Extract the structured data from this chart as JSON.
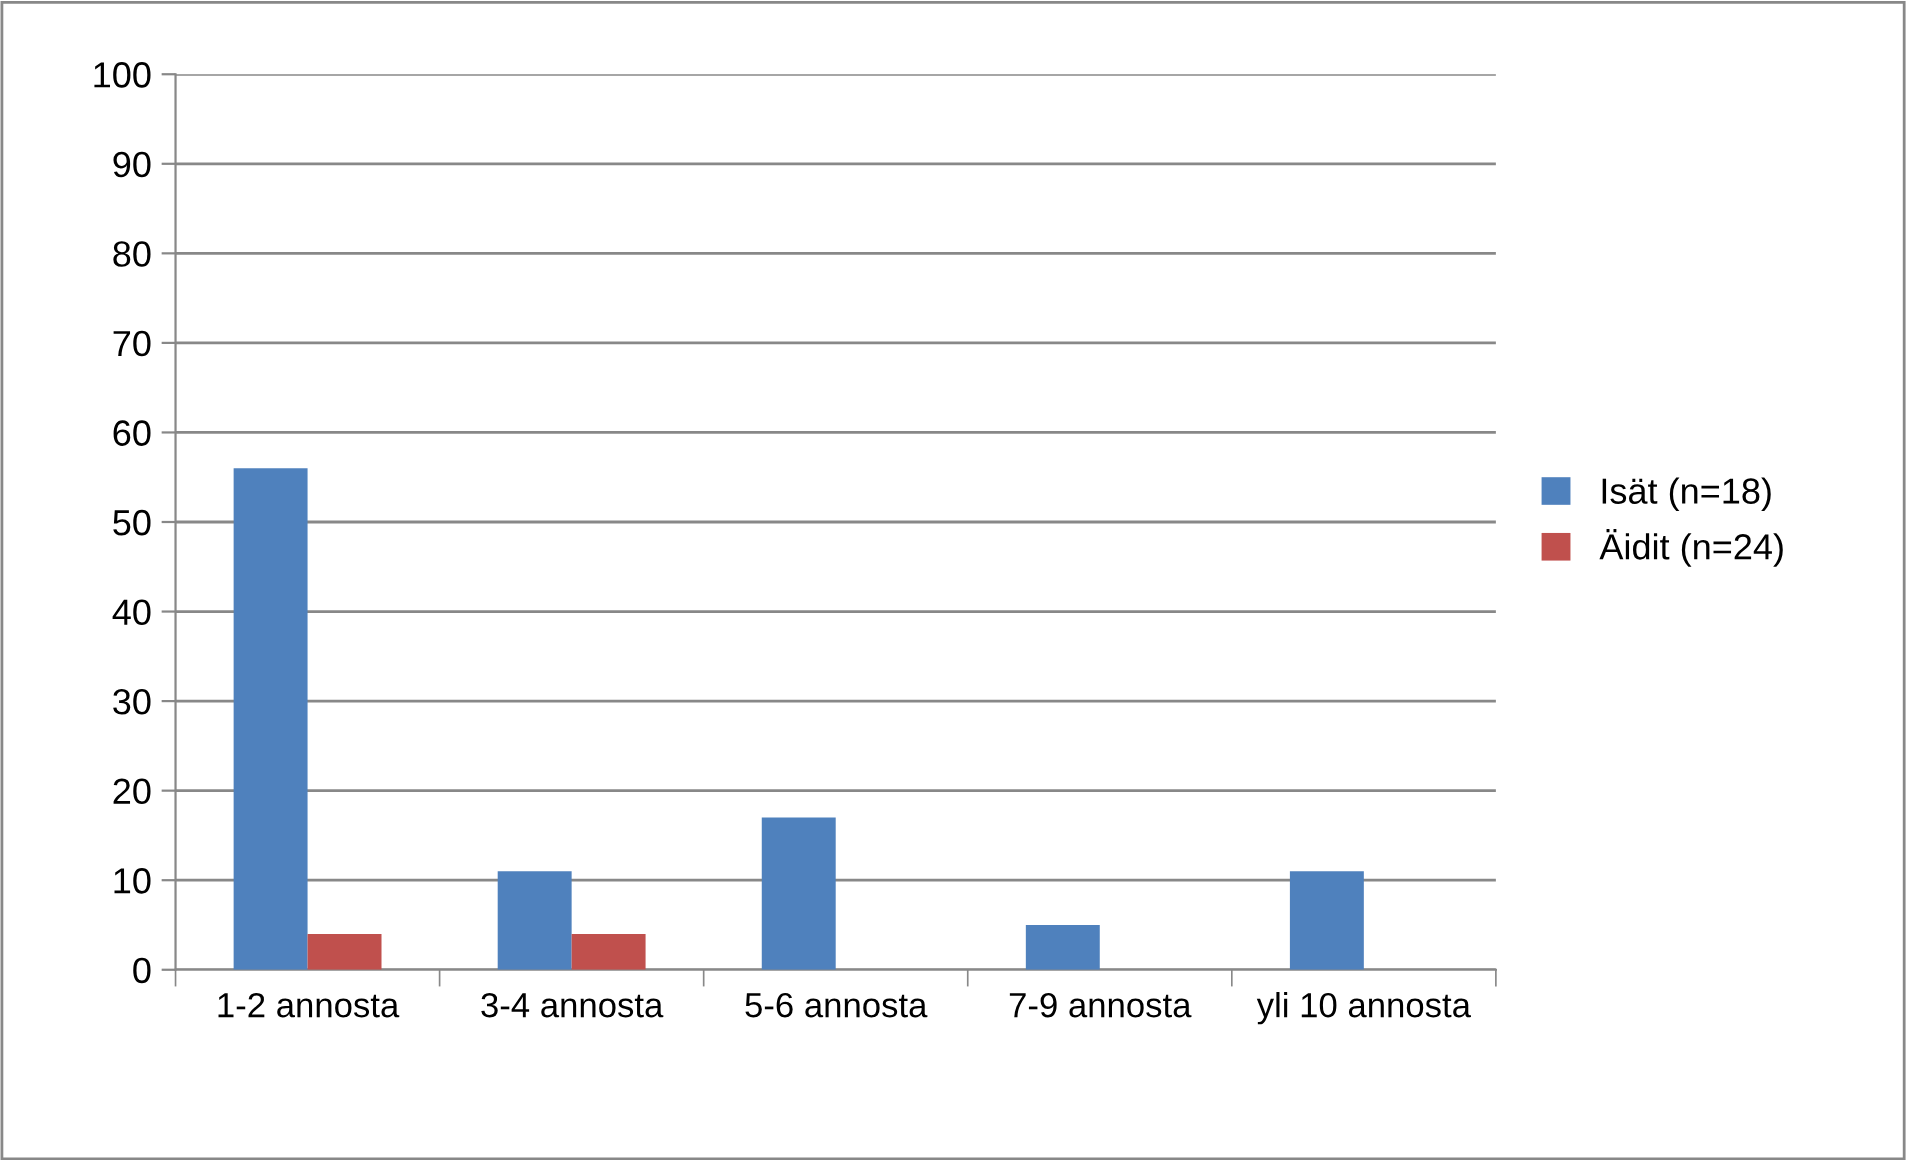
{
  "chart_data": {
    "type": "bar",
    "categories": [
      "1-2 annosta",
      "3-4 annosta",
      "5-6 annosta",
      "7-9 annosta",
      "yli 10 annosta"
    ],
    "series": [
      {
        "name": "Isät (n=18)",
        "color": "#4f81bd",
        "values": [
          56,
          11,
          17,
          5,
          11
        ]
      },
      {
        "name": "Äidit (n=24)",
        "color": "#c0504d",
        "values": [
          4,
          4,
          0,
          0,
          0
        ]
      }
    ],
    "ylim": [
      0,
      100
    ],
    "yticks": [
      0,
      10,
      20,
      30,
      40,
      50,
      60,
      70,
      80,
      90,
      100
    ],
    "grid": "y",
    "legend": "right"
  }
}
